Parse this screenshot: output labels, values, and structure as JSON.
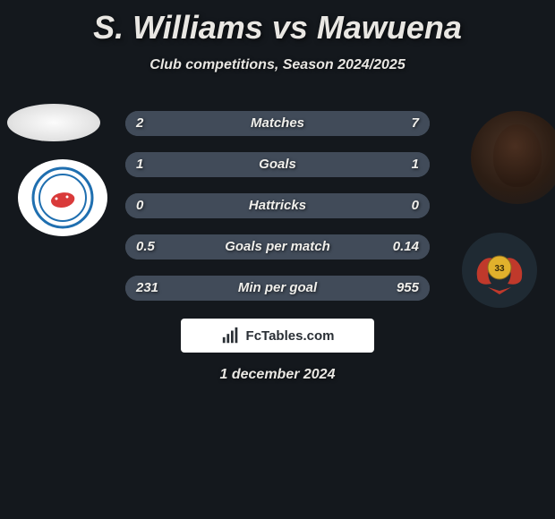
{
  "title": "S. Williams vs Mawuena",
  "subtitle": "Club competitions, Season 2024/2025",
  "date": "1 december 2024",
  "footer_brand": "FcTables.com",
  "colors": {
    "page_bg": "#14181d",
    "bar_track": "#536072",
    "bar_fill": "#414b59",
    "text": "#e9e7e3"
  },
  "bars": [
    {
      "label": "Matches",
      "left": "2",
      "right": "7",
      "left_pct": 22,
      "right_pct": 78
    },
    {
      "label": "Goals",
      "left": "1",
      "right": "1",
      "left_pct": 50,
      "right_pct": 50
    },
    {
      "label": "Hattricks",
      "left": "0",
      "right": "0",
      "left_pct": 50,
      "right_pct": 50
    },
    {
      "label": "Goals per match",
      "left": "0.5",
      "right": "0.14",
      "left_pct": 78,
      "right_pct": 22
    },
    {
      "label": "Min per goal",
      "left": "231",
      "right": "955",
      "left_pct": 19,
      "right_pct": 81
    }
  ],
  "left_club_badge": {
    "ring_color": "#1f6fb0",
    "inner_color": "#d93a3a",
    "text_color": "#1f6fb0"
  },
  "right_club_badge": {
    "wing_color": "#c0392b",
    "ball_color": "#e1b12c",
    "number": "33"
  }
}
